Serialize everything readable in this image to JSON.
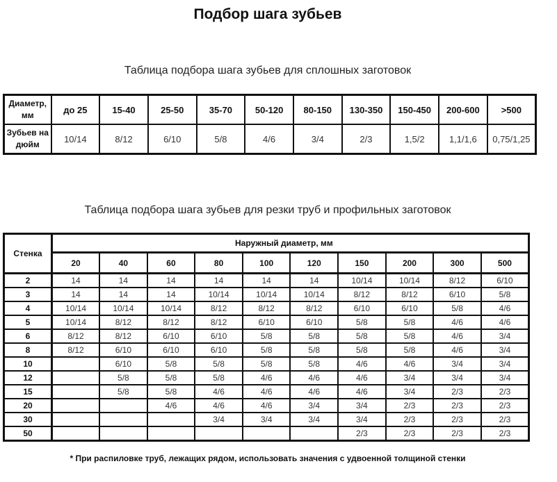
{
  "title": "Подбор шага зубьев",
  "table1": {
    "caption": "Таблица подбора шага зубьев для сплошных заготовок",
    "row1_label": "Диаметр, мм",
    "row2_label": "Зубьев на дюйм",
    "diameters": [
      "до 25",
      "15-40",
      "25-50",
      "35-70",
      "50-120",
      "80-150",
      "130-350",
      "150-450",
      "200-600",
      ">500"
    ],
    "teeth": [
      "10/14",
      "8/12",
      "6/10",
      "5/8",
      "4/6",
      "3/4",
      "2/3",
      "1,5/2",
      "1,1/1,6",
      "0,75/1,25"
    ]
  },
  "table2": {
    "caption": "Таблица подбора шага зубьев для резки труб и профильных заготовок",
    "wall_label": "Стенка",
    "group_label": "Наружный диаметр, мм",
    "diameters": [
      "20",
      "40",
      "60",
      "80",
      "100",
      "120",
      "150",
      "200",
      "300",
      "500"
    ],
    "rows": [
      {
        "wall": "2",
        "values": [
          "14",
          "14",
          "14",
          "14",
          "14",
          "14",
          "10/14",
          "10/14",
          "8/12",
          "6/10"
        ]
      },
      {
        "wall": "3",
        "values": [
          "14",
          "14",
          "14",
          "10/14",
          "10/14",
          "10/14",
          "8/12",
          "8/12",
          "6/10",
          "5/8"
        ]
      },
      {
        "wall": "4",
        "values": [
          "10/14",
          "10/14",
          "10/14",
          "8/12",
          "8/12",
          "8/12",
          "6/10",
          "6/10",
          "5/8",
          "4/6"
        ]
      },
      {
        "wall": "5",
        "values": [
          "10/14",
          "8/12",
          "8/12",
          "8/12",
          "6/10",
          "6/10",
          "5/8",
          "5/8",
          "4/6",
          "4/6"
        ]
      },
      {
        "wall": "6",
        "values": [
          "8/12",
          "8/12",
          "6/10",
          "6/10",
          "5/8",
          "5/8",
          "5/8",
          "5/8",
          "4/6",
          "3/4"
        ]
      },
      {
        "wall": "8",
        "values": [
          "8/12",
          "6/10",
          "6/10",
          "6/10",
          "5/8",
          "5/8",
          "5/8",
          "5/8",
          "4/6",
          "3/4"
        ]
      },
      {
        "wall": "10",
        "values": [
          "",
          "6/10",
          "5/8",
          "5/8",
          "5/8",
          "5/8",
          "4/6",
          "4/6",
          "3/4",
          "3/4"
        ]
      },
      {
        "wall": "12",
        "values": [
          "",
          "5/8",
          "5/8",
          "5/8",
          "4/6",
          "4/6",
          "4/6",
          "3/4",
          "3/4",
          "3/4"
        ]
      },
      {
        "wall": "15",
        "values": [
          "",
          "5/8",
          "5/8",
          "4/6",
          "4/6",
          "4/6",
          "4/6",
          "3/4",
          "2/3",
          "2/3"
        ]
      },
      {
        "wall": "20",
        "values": [
          "",
          "",
          "4/6",
          "4/6",
          "4/6",
          "3/4",
          "3/4",
          "2/3",
          "2/3",
          "2/3"
        ]
      },
      {
        "wall": "30",
        "values": [
          "",
          "",
          "",
          "3/4",
          "3/4",
          "3/4",
          "3/4",
          "2/3",
          "2/3",
          "2/3"
        ]
      },
      {
        "wall": "50",
        "values": [
          "",
          "",
          "",
          "",
          "",
          "",
          "2/3",
          "2/3",
          "2/3",
          "2/3"
        ]
      }
    ]
  },
  "footnote": "* При распиловке труб, лежащих рядом, использовать значения с удвоенной толщиной стенки"
}
